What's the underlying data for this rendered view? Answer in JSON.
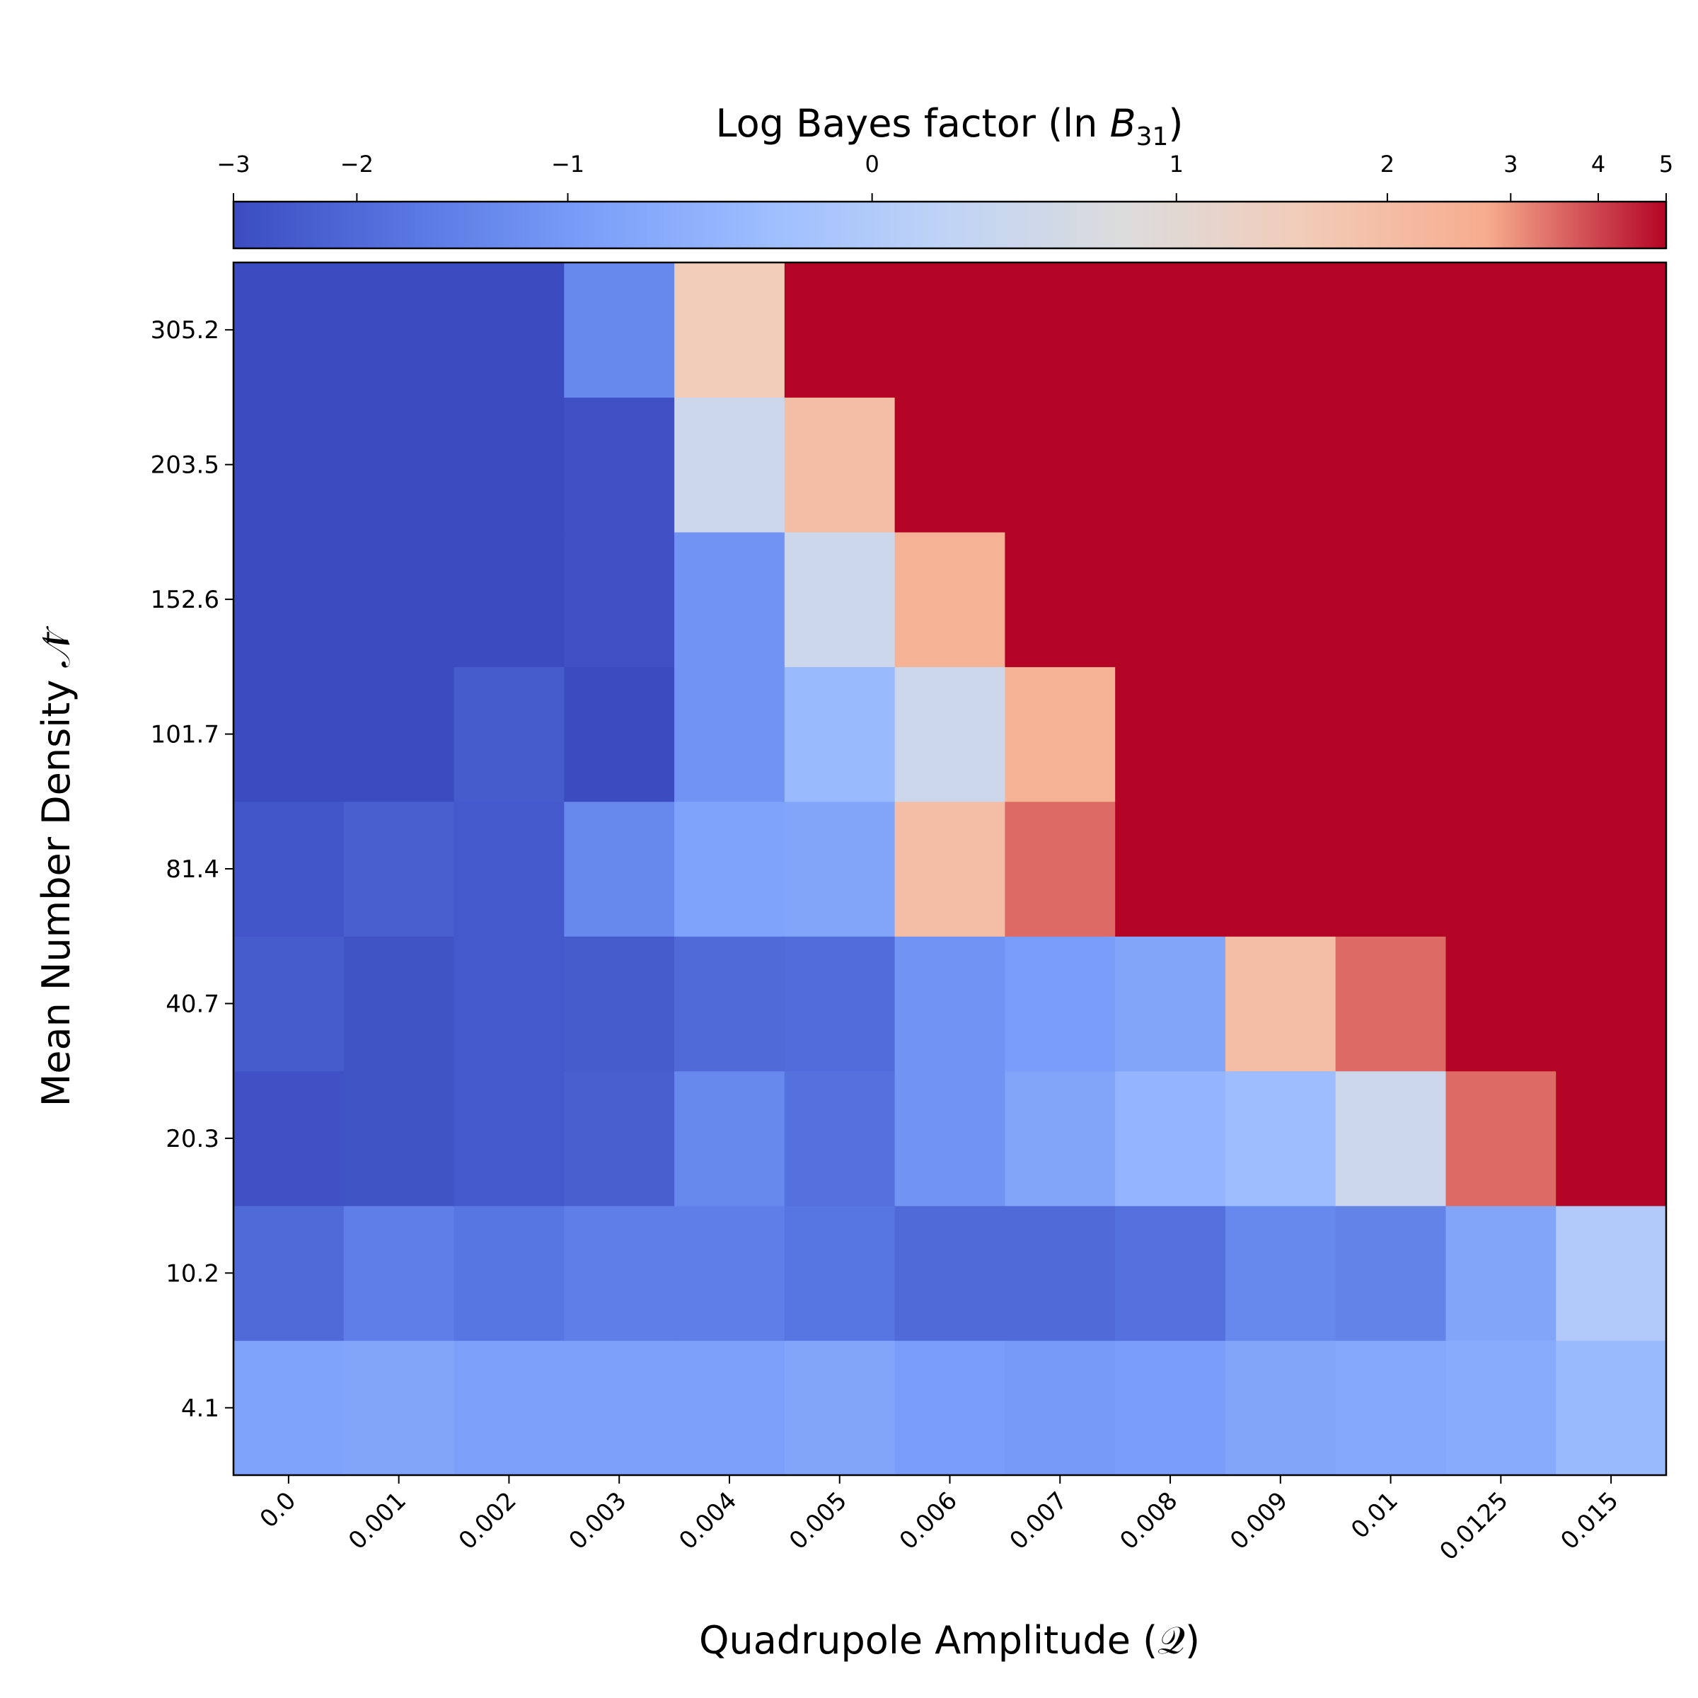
{
  "chart_data": {
    "type": "heatmap",
    "xlabel": "Quadrupole Amplitude (𝒬)",
    "ylabel": "Mean Number Density 𝒩̄",
    "x_categories": [
      "0.0",
      "0.001",
      "0.002",
      "0.003",
      "0.004",
      "0.005",
      "0.006",
      "0.007",
      "0.008",
      "0.009",
      "0.01",
      "0.0125",
      "0.015"
    ],
    "y_categories": [
      "4.1",
      "10.2",
      "20.3",
      "40.7",
      "81.4",
      "101.7",
      "152.6",
      "203.5",
      "305.2"
    ],
    "colorbar": {
      "label": "Log Bayes factor (ln B31)",
      "label_main": "Log Bayes factor (ln ",
      "label_B": "B",
      "label_sub": "31",
      "label_close": ")",
      "range": [
        -3,
        5
      ],
      "ticks": [
        "−3",
        "−2",
        "−1",
        "0",
        "1",
        "2",
        "3",
        "4",
        "5"
      ],
      "scale": "symlog",
      "colormap": "coolwarm"
    },
    "values": [
      [
        -0.85,
        -0.8,
        -0.9,
        -0.9,
        -0.9,
        -0.8,
        -0.95,
        -1.0,
        -0.95,
        -0.8,
        -0.75,
        -0.7,
        -0.4
      ],
      [
        -2.0,
        -1.5,
        -1.7,
        -1.5,
        -1.5,
        -1.7,
        -2.0,
        -2.0,
        -1.8,
        -1.3,
        -1.4,
        -0.8,
        0.0
      ],
      [
        -2.8,
        -2.7,
        -2.5,
        -2.3,
        -1.3,
        -1.8,
        -1.1,
        -0.8,
        -0.5,
        -0.35,
        0.5,
        3.5,
        5.0
      ],
      [
        -2.4,
        -2.7,
        -2.5,
        -2.4,
        -2.0,
        -1.9,
        -1.1,
        -0.95,
        -0.8,
        2.0,
        3.5,
        5.0,
        5.0
      ],
      [
        -2.6,
        -2.3,
        -2.5,
        -1.3,
        -0.85,
        -0.8,
        2.0,
        3.5,
        5.0,
        5.0,
        5.0,
        5.0,
        5.0
      ],
      [
        -3.0,
        -3.0,
        -2.4,
        -3.0,
        -1.1,
        -0.4,
        0.5,
        2.5,
        5.0,
        5.0,
        5.0,
        5.0,
        5.0
      ],
      [
        -3.0,
        -3.0,
        -3.0,
        -2.8,
        -1.1,
        0.5,
        2.5,
        5.0,
        5.0,
        5.0,
        5.0,
        5.0,
        5.0
      ],
      [
        -3.0,
        -3.0,
        -3.0,
        -2.8,
        0.5,
        2.0,
        5.0,
        5.0,
        5.0,
        5.0,
        5.0,
        5.0,
        5.0
      ],
      [
        -3.0,
        -3.0,
        -3.0,
        -1.3,
        1.5,
        5.0,
        5.0,
        5.0,
        5.0,
        5.0,
        5.0,
        5.0,
        5.0
      ]
    ]
  }
}
